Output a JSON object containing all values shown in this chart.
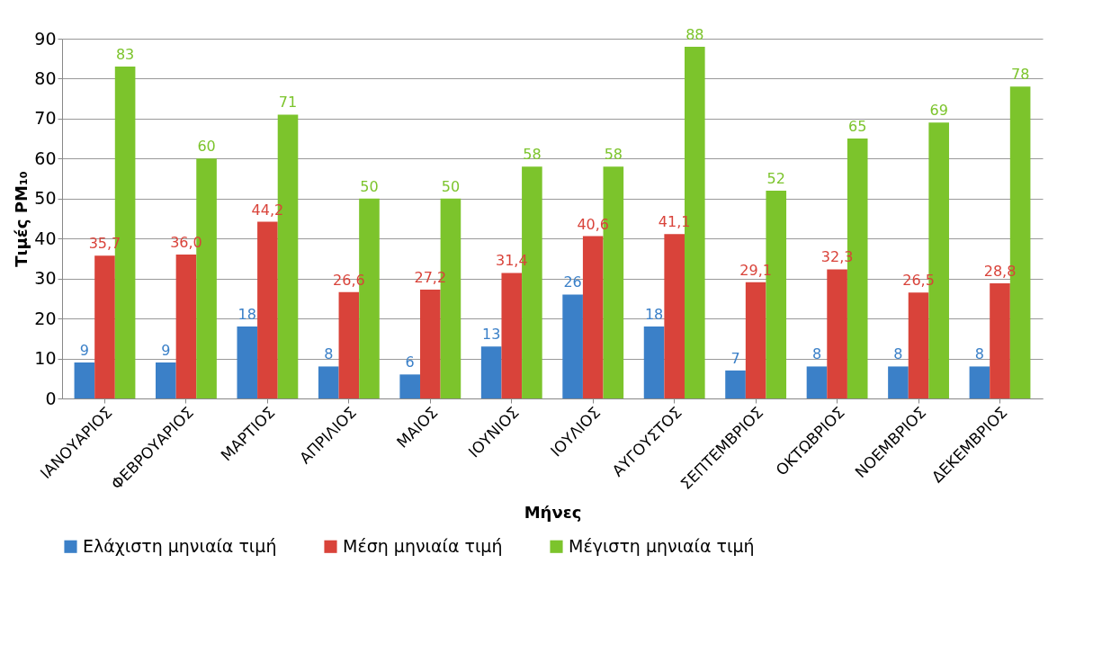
{
  "chart_data": {
    "type": "bar",
    "xlabel": "Μήνες",
    "ylabel": "Τιμές PM₁₀",
    "categories": [
      "ΙΑΝΟΥΑΡΙΟΣ",
      "ΦΕΒΡΟΥΑΡΙΟΣ",
      "ΜΑΡΤΙΟΣ",
      "ΑΠΡΙΛΙΟΣ",
      "ΜΑΙΟΣ",
      "ΙΟΥΝΙΟΣ",
      "ΙΟΥΛΙΟΣ",
      "ΑΥΓΟΥΣΤΟΣ",
      "ΣΕΠΤΕΜΒΡΙΟΣ",
      "ΟΚΤΩΒΡΙΟΣ",
      "ΝΟΕΜΒΡΙΟΣ",
      "ΔΕΚΕΜΒΡΙΟΣ"
    ],
    "series": [
      {
        "name": "Ελάχιστη μηνιαία τιμή",
        "color": "#3b80c8",
        "values": [
          9,
          9,
          18,
          8,
          6,
          13,
          26,
          18,
          7,
          8,
          8,
          8
        ],
        "value_labels": [
          "9",
          "9",
          "18",
          "8",
          "6",
          "13",
          "26",
          "18",
          "7",
          "8",
          "8",
          "8"
        ]
      },
      {
        "name": "Μέση μηνιαία τιμή",
        "color": "#d9433a",
        "values": [
          35.7,
          36.0,
          44.2,
          26.6,
          27.2,
          31.4,
          40.6,
          41.1,
          29.1,
          32.3,
          26.5,
          28.8
        ],
        "value_labels": [
          "35,7",
          "36,0",
          "44,2",
          "26,6",
          "27,2",
          "31,4",
          "40,6",
          "41,1",
          "29,1",
          "32,3",
          "26,5",
          "28,8"
        ]
      },
      {
        "name": "Μέγιστη μηνιαία τιμή",
        "color": "#7cc42c",
        "values": [
          83,
          60,
          71,
          50,
          50,
          58,
          58,
          88,
          52,
          65,
          69,
          78
        ],
        "value_labels": [
          "83",
          "60",
          "71",
          "50",
          "50",
          "58",
          "58",
          "88",
          "52",
          "65",
          "69",
          "78"
        ]
      }
    ],
    "ylim": [
      0,
      90
    ],
    "yticks": [
      0,
      10,
      20,
      30,
      40,
      50,
      60,
      70,
      80,
      90
    ],
    "grid": "y",
    "legend": "bottom"
  }
}
